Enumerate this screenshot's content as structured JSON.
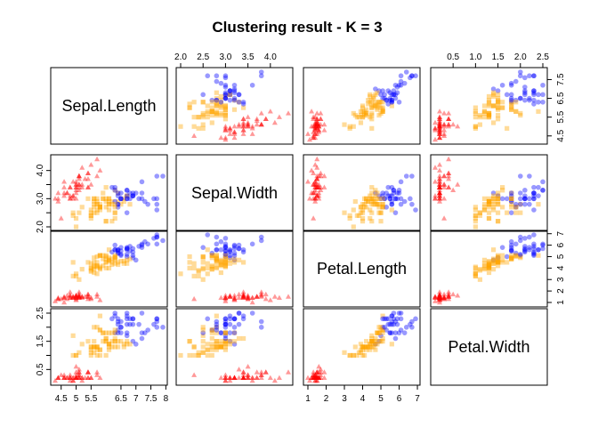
{
  "chart_data": {
    "type": "scatter",
    "title": "Clustering result - K = 3",
    "variables": [
      "Sepal.Length",
      "Sepal.Width",
      "Petal.Length",
      "Petal.Width"
    ],
    "ranges": [
      [
        4.3,
        7.9
      ],
      [
        2.0,
        4.4
      ],
      [
        1.0,
        6.9
      ],
      [
        0.1,
        2.5
      ]
    ],
    "ticks": [
      [
        4.5,
        5,
        5.5,
        6.5,
        7,
        7.5,
        8
      ],
      [
        2.0,
        2.5,
        3.0,
        3.5,
        4.0
      ],
      [
        1,
        2,
        3,
        4,
        5,
        6,
        7
      ],
      [
        0.5,
        1.0,
        1.5,
        2.0,
        2.5
      ]
    ],
    "left_ticks": [
      [],
      [
        "2.0",
        "3.0",
        "4.0"
      ],
      [],
      [
        "0.5",
        "1.5",
        "2.5"
      ]
    ],
    "right_ticks": [
      [
        "4.5",
        "5.5",
        "6.5",
        "7.5"
      ],
      [],
      [
        "1",
        "2",
        "3",
        "4",
        "5",
        "6",
        "7"
      ],
      []
    ],
    "top_ticks": [
      [],
      [
        "2.0",
        "2.5",
        "3.0",
        "3.5",
        "4.0"
      ],
      [],
      [
        "0.5",
        "1.0",
        "1.5",
        "2.0",
        "2.5"
      ]
    ],
    "bottom_ticks": [
      [
        "4.5",
        "5",
        "5.5",
        "6.5",
        "7",
        "7.5",
        "8"
      ],
      [],
      [
        "1",
        "2",
        "3",
        "4",
        "5",
        "6",
        "7"
      ],
      []
    ],
    "clusters": [
      {
        "color": "#ff0000",
        "marker": "triangle",
        "opacity": 0.4
      },
      {
        "color": "#ffa500",
        "marker": "square",
        "opacity": 0.4
      },
      {
        "color": "#0000ff",
        "marker": "circle",
        "opacity": 0.4
      }
    ],
    "points": [
      [
        5.1,
        3.5,
        1.4,
        0.2,
        0
      ],
      [
        4.9,
        3.0,
        1.4,
        0.2,
        0
      ],
      [
        4.7,
        3.2,
        1.3,
        0.2,
        0
      ],
      [
        4.6,
        3.1,
        1.5,
        0.2,
        0
      ],
      [
        5.0,
        3.6,
        1.4,
        0.2,
        0
      ],
      [
        5.4,
        3.9,
        1.7,
        0.4,
        0
      ],
      [
        4.6,
        3.4,
        1.4,
        0.3,
        0
      ],
      [
        5.0,
        3.4,
        1.5,
        0.2,
        0
      ],
      [
        4.4,
        2.9,
        1.4,
        0.2,
        0
      ],
      [
        4.9,
        3.1,
        1.5,
        0.1,
        0
      ],
      [
        5.4,
        3.7,
        1.5,
        0.2,
        0
      ],
      [
        4.8,
        3.4,
        1.6,
        0.2,
        0
      ],
      [
        4.8,
        3.0,
        1.4,
        0.1,
        0
      ],
      [
        4.3,
        3.0,
        1.1,
        0.1,
        0
      ],
      [
        5.8,
        4.0,
        1.2,
        0.2,
        0
      ],
      [
        5.7,
        4.4,
        1.5,
        0.4,
        0
      ],
      [
        5.4,
        3.9,
        1.3,
        0.4,
        0
      ],
      [
        5.1,
        3.5,
        1.4,
        0.3,
        0
      ],
      [
        5.7,
        3.8,
        1.7,
        0.3,
        0
      ],
      [
        5.1,
        3.8,
        1.5,
        0.3,
        0
      ],
      [
        5.4,
        3.4,
        1.7,
        0.2,
        0
      ],
      [
        5.1,
        3.7,
        1.5,
        0.4,
        0
      ],
      [
        4.6,
        3.6,
        1.0,
        0.2,
        0
      ],
      [
        5.1,
        3.3,
        1.7,
        0.5,
        0
      ],
      [
        4.8,
        3.4,
        1.9,
        0.2,
        0
      ],
      [
        5.0,
        3.0,
        1.6,
        0.2,
        0
      ],
      [
        5.0,
        3.4,
        1.6,
        0.4,
        0
      ],
      [
        5.2,
        3.5,
        1.5,
        0.2,
        0
      ],
      [
        5.2,
        3.4,
        1.4,
        0.2,
        0
      ],
      [
        4.7,
        3.2,
        1.6,
        0.2,
        0
      ],
      [
        4.8,
        3.1,
        1.6,
        0.2,
        0
      ],
      [
        5.4,
        3.4,
        1.5,
        0.4,
        0
      ],
      [
        5.2,
        4.1,
        1.5,
        0.1,
        0
      ],
      [
        5.5,
        4.2,
        1.4,
        0.2,
        0
      ],
      [
        4.9,
        3.1,
        1.5,
        0.2,
        0
      ],
      [
        5.0,
        3.2,
        1.2,
        0.2,
        0
      ],
      [
        5.5,
        3.5,
        1.3,
        0.2,
        0
      ],
      [
        4.9,
        3.6,
        1.4,
        0.1,
        0
      ],
      [
        4.4,
        3.0,
        1.3,
        0.2,
        0
      ],
      [
        5.1,
        3.4,
        1.5,
        0.2,
        0
      ],
      [
        5.0,
        3.5,
        1.3,
        0.3,
        0
      ],
      [
        4.5,
        2.3,
        1.3,
        0.3,
        0
      ],
      [
        4.4,
        3.2,
        1.3,
        0.2,
        0
      ],
      [
        5.0,
        3.5,
        1.6,
        0.6,
        0
      ],
      [
        5.1,
        3.8,
        1.9,
        0.4,
        0
      ],
      [
        4.8,
        3.0,
        1.4,
        0.3,
        0
      ],
      [
        5.1,
        3.8,
        1.6,
        0.2,
        0
      ],
      [
        4.6,
        3.2,
        1.4,
        0.2,
        0
      ],
      [
        5.3,
        3.7,
        1.5,
        0.2,
        0
      ],
      [
        5.0,
        3.3,
        1.4,
        0.2,
        0
      ],
      [
        7.0,
        3.2,
        4.7,
        1.4,
        2
      ],
      [
        6.4,
        3.2,
        4.5,
        1.5,
        1
      ],
      [
        6.9,
        3.1,
        4.9,
        1.5,
        2
      ],
      [
        5.5,
        2.3,
        4.0,
        1.3,
        1
      ],
      [
        6.5,
        2.8,
        4.6,
        1.5,
        1
      ],
      [
        5.7,
        2.8,
        4.5,
        1.3,
        1
      ],
      [
        6.3,
        3.3,
        4.7,
        1.6,
        1
      ],
      [
        4.9,
        2.4,
        3.3,
        1.0,
        1
      ],
      [
        6.6,
        2.9,
        4.6,
        1.3,
        1
      ],
      [
        5.2,
        2.7,
        3.9,
        1.4,
        1
      ],
      [
        5.0,
        2.0,
        3.5,
        1.0,
        1
      ],
      [
        5.9,
        3.0,
        4.2,
        1.5,
        1
      ],
      [
        6.0,
        2.2,
        4.0,
        1.0,
        1
      ],
      [
        6.1,
        2.9,
        4.7,
        1.4,
        1
      ],
      [
        5.6,
        2.9,
        3.6,
        1.3,
        1
      ],
      [
        6.7,
        3.1,
        4.4,
        1.4,
        1
      ],
      [
        5.6,
        3.0,
        4.5,
        1.5,
        1
      ],
      [
        5.8,
        2.7,
        4.1,
        1.0,
        1
      ],
      [
        6.2,
        2.2,
        4.5,
        1.5,
        1
      ],
      [
        5.6,
        2.5,
        3.9,
        1.1,
        1
      ],
      [
        5.9,
        3.2,
        4.8,
        1.8,
        1
      ],
      [
        6.1,
        2.8,
        4.0,
        1.3,
        1
      ],
      [
        6.3,
        2.5,
        4.9,
        1.5,
        1
      ],
      [
        6.1,
        2.8,
        4.7,
        1.2,
        1
      ],
      [
        6.4,
        2.9,
        4.3,
        1.3,
        1
      ],
      [
        6.6,
        3.0,
        4.4,
        1.4,
        1
      ],
      [
        6.8,
        2.8,
        4.8,
        1.4,
        1
      ],
      [
        6.7,
        3.0,
        5.0,
        1.7,
        2
      ],
      [
        6.0,
        2.9,
        4.5,
        1.5,
        1
      ],
      [
        5.7,
        2.6,
        3.5,
        1.0,
        1
      ],
      [
        5.5,
        2.4,
        3.8,
        1.1,
        1
      ],
      [
        5.5,
        2.4,
        3.7,
        1.0,
        1
      ],
      [
        5.8,
        2.7,
        3.9,
        1.2,
        1
      ],
      [
        6.0,
        2.7,
        5.1,
        1.6,
        1
      ],
      [
        5.4,
        3.0,
        4.5,
        1.5,
        1
      ],
      [
        6.0,
        3.4,
        4.5,
        1.6,
        1
      ],
      [
        6.7,
        3.1,
        4.7,
        1.5,
        1
      ],
      [
        6.3,
        2.3,
        4.4,
        1.3,
        1
      ],
      [
        5.6,
        3.0,
        4.1,
        1.3,
        1
      ],
      [
        5.5,
        2.5,
        4.0,
        1.3,
        1
      ],
      [
        5.5,
        2.6,
        4.4,
        1.2,
        1
      ],
      [
        6.1,
        3.0,
        4.6,
        1.4,
        1
      ],
      [
        5.8,
        2.6,
        4.0,
        1.2,
        1
      ],
      [
        5.0,
        2.3,
        3.3,
        1.0,
        1
      ],
      [
        5.6,
        2.7,
        4.2,
        1.3,
        1
      ],
      [
        5.7,
        3.0,
        4.2,
        1.2,
        1
      ],
      [
        5.7,
        2.9,
        4.2,
        1.3,
        1
      ],
      [
        6.2,
        2.9,
        4.3,
        1.3,
        1
      ],
      [
        5.1,
        2.5,
        3.0,
        1.1,
        1
      ],
      [
        5.7,
        2.8,
        4.1,
        1.3,
        1
      ],
      [
        6.3,
        3.3,
        6.0,
        2.5,
        2
      ],
      [
        5.8,
        2.7,
        5.1,
        1.9,
        1
      ],
      [
        7.1,
        3.0,
        5.9,
        2.1,
        2
      ],
      [
        6.3,
        2.9,
        5.6,
        1.8,
        2
      ],
      [
        6.5,
        3.0,
        5.8,
        2.2,
        2
      ],
      [
        7.6,
        3.0,
        6.6,
        2.1,
        2
      ],
      [
        4.9,
        2.5,
        4.5,
        1.7,
        1
      ],
      [
        7.3,
        2.9,
        6.3,
        1.8,
        2
      ],
      [
        6.7,
        2.5,
        5.8,
        1.8,
        2
      ],
      [
        7.2,
        3.6,
        6.1,
        2.5,
        2
      ],
      [
        6.5,
        3.2,
        5.1,
        2.0,
        2
      ],
      [
        6.4,
        2.7,
        5.3,
        1.9,
        2
      ],
      [
        6.8,
        3.0,
        5.5,
        2.1,
        2
      ],
      [
        5.7,
        2.5,
        5.0,
        2.0,
        1
      ],
      [
        5.8,
        2.8,
        5.1,
        2.4,
        1
      ],
      [
        6.4,
        3.2,
        5.3,
        2.3,
        2
      ],
      [
        6.5,
        3.0,
        5.5,
        1.8,
        2
      ],
      [
        7.7,
        3.8,
        6.7,
        2.2,
        2
      ],
      [
        7.7,
        2.6,
        6.9,
        2.3,
        2
      ],
      [
        6.0,
        2.2,
        5.0,
        1.5,
        1
      ],
      [
        6.9,
        3.2,
        5.7,
        2.3,
        2
      ],
      [
        5.6,
        2.8,
        4.9,
        2.0,
        1
      ],
      [
        7.7,
        2.8,
        6.7,
        2.0,
        2
      ],
      [
        6.3,
        2.7,
        4.9,
        1.8,
        1
      ],
      [
        6.7,
        3.3,
        5.7,
        2.1,
        2
      ],
      [
        7.2,
        3.2,
        6.0,
        1.8,
        2
      ],
      [
        6.2,
        2.8,
        4.8,
        1.8,
        1
      ],
      [
        6.1,
        3.0,
        4.9,
        1.8,
        1
      ],
      [
        6.4,
        2.8,
        5.6,
        2.1,
        2
      ],
      [
        7.2,
        3.0,
        5.8,
        1.6,
        2
      ],
      [
        7.4,
        2.8,
        6.1,
        1.9,
        2
      ],
      [
        7.9,
        3.8,
        6.4,
        2.0,
        2
      ],
      [
        6.4,
        2.8,
        5.6,
        2.2,
        2
      ],
      [
        6.3,
        2.8,
        5.1,
        1.5,
        1
      ],
      [
        6.1,
        2.6,
        5.6,
        1.4,
        1
      ],
      [
        7.7,
        3.0,
        6.1,
        2.3,
        2
      ],
      [
        6.3,
        3.4,
        5.6,
        2.4,
        2
      ],
      [
        6.4,
        3.1,
        5.5,
        1.8,
        2
      ],
      [
        6.0,
        3.0,
        4.8,
        1.8,
        1
      ],
      [
        6.9,
        3.1,
        5.4,
        2.1,
        2
      ],
      [
        6.7,
        3.1,
        5.6,
        2.4,
        2
      ],
      [
        6.9,
        3.1,
        5.1,
        2.3,
        2
      ],
      [
        5.8,
        2.7,
        5.1,
        1.9,
        1
      ],
      [
        6.8,
        3.2,
        5.9,
        2.3,
        2
      ],
      [
        6.7,
        3.3,
        5.7,
        2.5,
        2
      ],
      [
        6.7,
        3.0,
        5.2,
        2.3,
        2
      ],
      [
        6.3,
        2.5,
        5.0,
        1.9,
        1
      ],
      [
        6.5,
        3.0,
        5.2,
        2.0,
        2
      ],
      [
        6.2,
        3.4,
        5.4,
        2.3,
        2
      ],
      [
        5.9,
        3.0,
        5.1,
        1.8,
        1
      ]
    ]
  }
}
